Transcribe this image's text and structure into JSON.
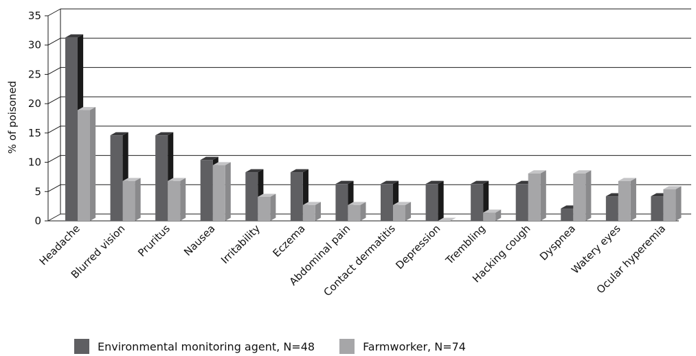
{
  "chart_data": {
    "type": "bar",
    "categories": [
      "Headache",
      "Blurred vision",
      "Pruritus",
      "Nausea",
      "Irritability",
      "Eczema",
      "Abdominal pain",
      "Contact dermatitis",
      "Depression",
      "Trembling",
      "Hacking cough",
      "Dyspnea",
      "Watery eyes",
      "Ocular hyperemia"
    ],
    "series": [
      {
        "name": "Environmental monitoring agent, N=48",
        "color": "#5f5f62",
        "values": [
          31.3,
          14.6,
          14.6,
          10.4,
          8.3,
          8.3,
          6.3,
          6.3,
          6.3,
          6.3,
          6.3,
          2.1,
          4.2,
          4.2
        ]
      },
      {
        "name": "Farmworker, N=74",
        "color": "#a6a6a8",
        "values": [
          18.9,
          6.8,
          6.8,
          9.5,
          4.1,
          2.7,
          2.7,
          2.7,
          0,
          1.4,
          8.1,
          8.1,
          6.8,
          5.4
        ]
      }
    ],
    "title": "",
    "xlabel": "",
    "ylabel": "% of poisoned",
    "yticks": [
      "0",
      "5",
      "10",
      "15",
      "20",
      "25",
      "30",
      "35"
    ],
    "ylim": [
      0,
      35
    ],
    "grid": true,
    "legend_position": "bottom",
    "three_d": true
  }
}
